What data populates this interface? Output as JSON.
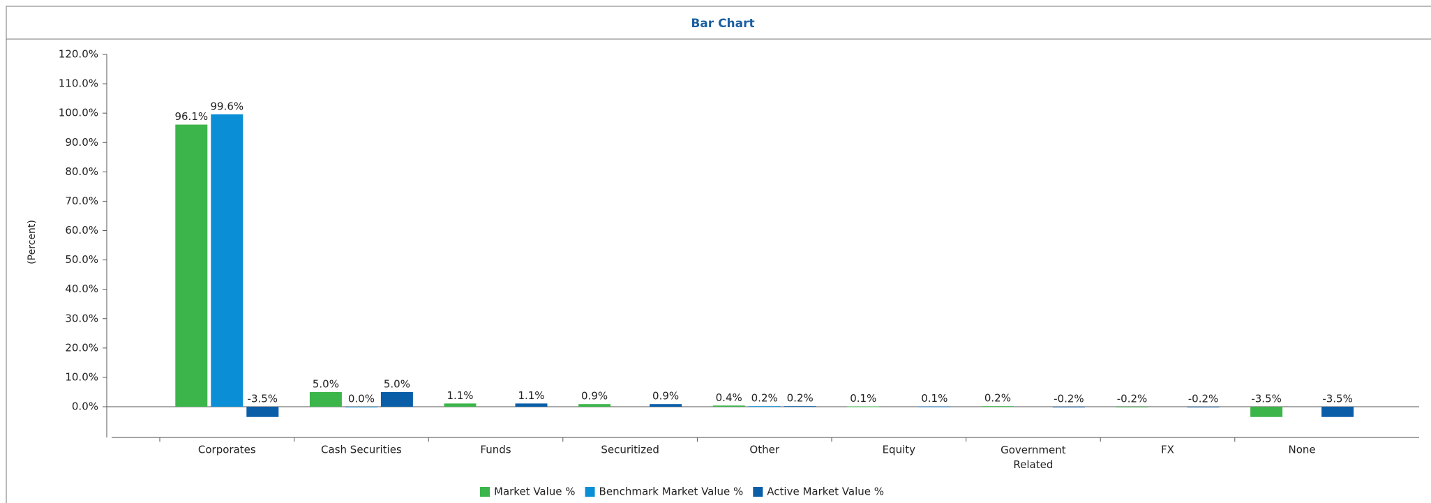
{
  "chart_data": {
    "type": "bar",
    "title": "Bar Chart",
    "y_label": "(Percent)",
    "categories": [
      "Corporates",
      "Cash Securities",
      "Funds",
      "Securitized",
      "Other",
      "Equity",
      "Government Related",
      "FX",
      "None"
    ],
    "series": [
      {
        "name": "Market Value %",
        "color": "#3cb54a",
        "values": [
          96.1,
          5.0,
          1.1,
          0.9,
          0.4,
          0.1,
          0.2,
          -0.2,
          -3.5
        ],
        "value_labels": [
          "96.1%",
          "5.0%",
          "1.1%",
          "0.9%",
          "0.4%",
          "0.1%",
          "0.2%",
          "-0.2%",
          "-3.5%"
        ]
      },
      {
        "name": "Benchmark Market Value %",
        "color": "#0a8fd6",
        "values": [
          99.6,
          0.0,
          null,
          null,
          0.2,
          null,
          null,
          null,
          null
        ],
        "value_labels": [
          "99.6%",
          "0.0%",
          null,
          null,
          "0.2%",
          null,
          null,
          null,
          null
        ]
      },
      {
        "name": "Active Market Value %",
        "color": "#0a5ea8",
        "values": [
          -3.5,
          5.0,
          1.1,
          0.9,
          0.2,
          0.1,
          -0.2,
          -0.2,
          -3.5
        ],
        "value_labels": [
          "-3.5%",
          "5.0%",
          "1.1%",
          "0.9%",
          "0.2%",
          "0.1%",
          "-0.2%",
          "-0.2%",
          "-3.5%"
        ]
      }
    ],
    "ylim": [
      -10,
      120
    ],
    "yticks": [
      {
        "value": 0,
        "label": "0.0%"
      },
      {
        "value": 10,
        "label": "10.0%"
      },
      {
        "value": 20,
        "label": "20.0%"
      },
      {
        "value": 30,
        "label": "30.0%"
      },
      {
        "value": 40,
        "label": "40.0%"
      },
      {
        "value": 50,
        "label": "50.0%"
      },
      {
        "value": 60,
        "label": "60.0%"
      },
      {
        "value": 70,
        "label": "70.0%"
      },
      {
        "value": 80,
        "label": "80.0%"
      },
      {
        "value": 90,
        "label": "90.0%"
      },
      {
        "value": 100,
        "label": "100.0%"
      },
      {
        "value": 110,
        "label": "110.0%"
      },
      {
        "value": 120,
        "label": "120.0%"
      }
    ],
    "legend": "bottom"
  }
}
